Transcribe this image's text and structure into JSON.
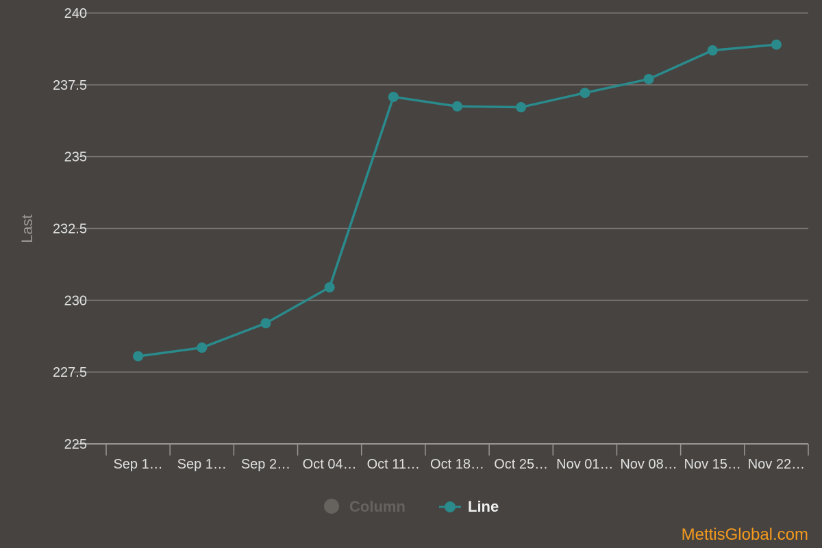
{
  "chart_data": {
    "type": "line",
    "categories": [
      "Sep 1…",
      "Sep 1…",
      "Sep 2…",
      "Oct 04…",
      "Oct 11…",
      "Oct 18…",
      "Oct 25…",
      "Nov 01…",
      "Nov 08…",
      "Nov 15…",
      "Nov 22…"
    ],
    "series": [
      {
        "name": "Line",
        "values": [
          228.05,
          228.35,
          229.2,
          230.45,
          237.08,
          236.75,
          236.72,
          237.22,
          237.7,
          238.7,
          238.9
        ]
      }
    ],
    "ylabel": "Last",
    "ylim": [
      225,
      240
    ],
    "yticks": [
      "225",
      "227.5",
      "230",
      "232.5",
      "235",
      "237.5",
      "240"
    ],
    "grid": true,
    "legend": {
      "position": "bottom",
      "items": [
        {
          "label": "Column",
          "enabled": false
        },
        {
          "label": "Line",
          "enabled": true
        }
      ]
    },
    "colors": {
      "line": "#2a8a8c",
      "grid": "#7a7774",
      "background": "#464340",
      "disabled": "#66635f"
    }
  },
  "credit": "MettisGlobal.com"
}
